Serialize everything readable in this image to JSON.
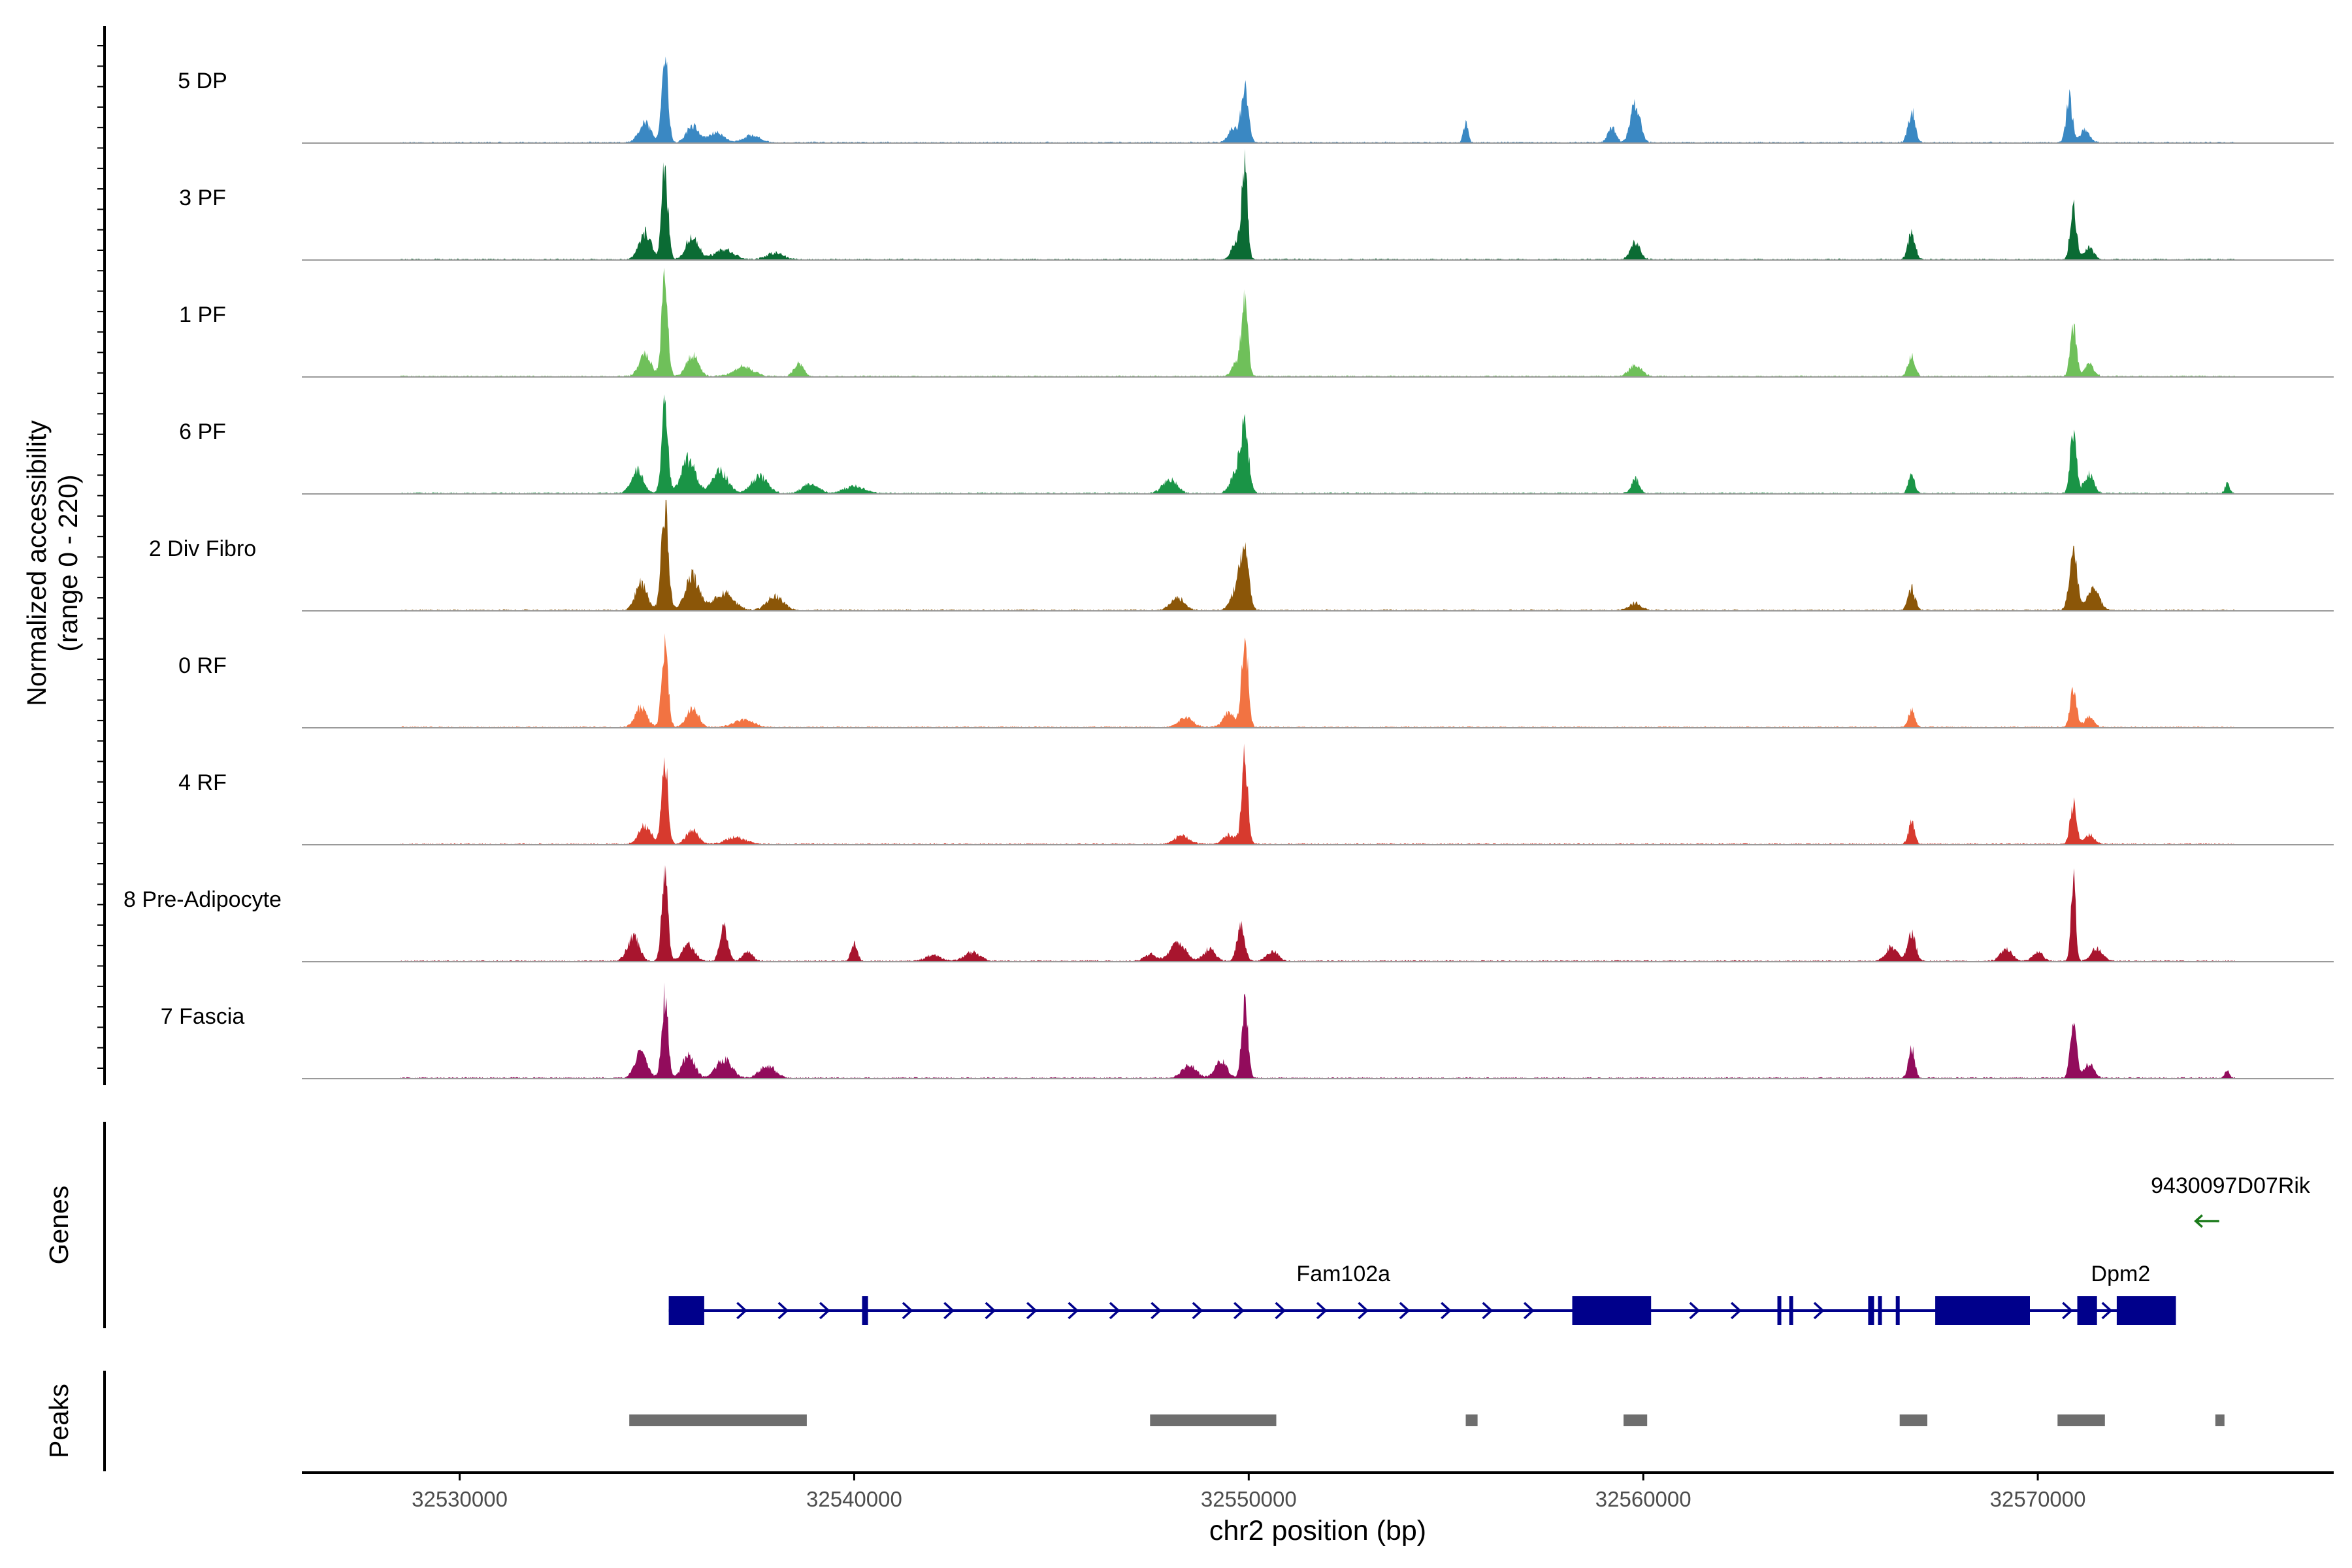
{
  "chart_data": {
    "type": "coverage-track",
    "title": "",
    "region": {
      "chrom": "chr2",
      "start": 32526000,
      "end": 32577500
    },
    "xlabel": "chr2 position (bp)",
    "x_ticks": [
      32530000,
      32540000,
      32550000,
      32560000,
      32570000
    ],
    "x_tick_labels": [
      "32530000",
      "32540000",
      "32550000",
      "32560000",
      "32570000"
    ],
    "ylabel_line1": "Normalized accessibility",
    "ylabel_line2": "(range 0 - 220)",
    "y_range": [
      0,
      220
    ],
    "track_label_genes": "Genes",
    "track_label_peaks": "Peaks",
    "tracks": [
      {
        "name": "5 DP",
        "color": "#3a88c3",
        "data_end": 32575000,
        "peaks": [
          [
            32535200,
            185,
            80
          ],
          [
            32534700,
            40,
            150
          ],
          [
            32535900,
            35,
            150
          ],
          [
            32536500,
            20,
            200
          ],
          [
            32537400,
            15,
            200
          ],
          [
            32549600,
            30,
            120
          ],
          [
            32549900,
            110,
            90
          ],
          [
            32555500,
            40,
            60
          ],
          [
            32559200,
            30,
            100
          ],
          [
            32559800,
            80,
            120
          ],
          [
            32566800,
            65,
            90
          ],
          [
            32570800,
            90,
            80
          ],
          [
            32571200,
            25,
            120
          ]
        ]
      },
      {
        "name": "3 PF",
        "color": "#0b6b34",
        "data_end": 32575000,
        "peaks": [
          [
            32535200,
            192,
            80
          ],
          [
            32534700,
            55,
            150
          ],
          [
            32535900,
            50,
            150
          ],
          [
            32536700,
            20,
            250
          ],
          [
            32538000,
            14,
            200
          ],
          [
            32549700,
            40,
            120
          ],
          [
            32549900,
            205,
            70
          ],
          [
            32559800,
            35,
            120
          ],
          [
            32566800,
            55,
            90
          ],
          [
            32570900,
            105,
            80
          ],
          [
            32571300,
            25,
            120
          ]
        ]
      },
      {
        "name": "1 PF",
        "color": "#6fc05a",
        "data_end": 32575000,
        "peaks": [
          [
            32535200,
            195,
            80
          ],
          [
            32534700,
            45,
            150
          ],
          [
            32535900,
            45,
            150
          ],
          [
            32537200,
            20,
            250
          ],
          [
            32538600,
            25,
            120
          ],
          [
            32549700,
            30,
            120
          ],
          [
            32549900,
            150,
            80
          ],
          [
            32559800,
            25,
            150
          ],
          [
            32566800,
            40,
            90
          ],
          [
            32570900,
            100,
            80
          ],
          [
            32571300,
            25,
            120
          ]
        ]
      },
      {
        "name": "6 PF",
        "color": "#1a9446",
        "data_end": 32575000,
        "peaks": [
          [
            32535200,
            180,
            80
          ],
          [
            32534500,
            50,
            150
          ],
          [
            32535800,
            70,
            180
          ],
          [
            32536600,
            45,
            200
          ],
          [
            32537600,
            35,
            200
          ],
          [
            32538900,
            20,
            200
          ],
          [
            32540000,
            15,
            250
          ],
          [
            32549700,
            45,
            150
          ],
          [
            32549900,
            120,
            100
          ],
          [
            32548000,
            30,
            180
          ],
          [
            32559800,
            30,
            100
          ],
          [
            32566800,
            40,
            80
          ],
          [
            32570900,
            125,
            80
          ],
          [
            32571300,
            40,
            120
          ],
          [
            32574800,
            20,
            60
          ]
        ]
      },
      {
        "name": "2 Div Fibro",
        "color": "#8b5608",
        "data_end": 32575000,
        "peaks": [
          [
            32535200,
            215,
            90
          ],
          [
            32534600,
            55,
            150
          ],
          [
            32535900,
            70,
            180
          ],
          [
            32536700,
            35,
            250
          ],
          [
            32538000,
            30,
            200
          ],
          [
            32549700,
            45,
            150
          ],
          [
            32549900,
            125,
            100
          ],
          [
            32548200,
            25,
            180
          ],
          [
            32559800,
            15,
            150
          ],
          [
            32566800,
            45,
            90
          ],
          [
            32570900,
            115,
            100
          ],
          [
            32571400,
            50,
            150
          ]
        ]
      },
      {
        "name": "0 RF",
        "color": "#f27342",
        "data_end": 32575000,
        "peaks": [
          [
            32535200,
            185,
            80
          ],
          [
            32534600,
            40,
            150
          ],
          [
            32535900,
            40,
            150
          ],
          [
            32537200,
            15,
            250
          ],
          [
            32548400,
            20,
            180
          ],
          [
            32549900,
            200,
            80
          ],
          [
            32549500,
            30,
            150
          ],
          [
            32566800,
            35,
            80
          ],
          [
            32570900,
            85,
            80
          ],
          [
            32571300,
            20,
            120
          ]
        ]
      },
      {
        "name": "4 RF",
        "color": "#d73a2e",
        "data_end": 32575000,
        "peaks": [
          [
            32535200,
            175,
            80
          ],
          [
            32534700,
            40,
            150
          ],
          [
            32535900,
            30,
            150
          ],
          [
            32537000,
            14,
            250
          ],
          [
            32548300,
            18,
            180
          ],
          [
            32549900,
            175,
            80
          ],
          [
            32549500,
            20,
            150
          ],
          [
            32566800,
            45,
            80
          ],
          [
            32570900,
            85,
            80
          ],
          [
            32571300,
            20,
            120
          ]
        ]
      },
      {
        "name": "8 Pre-Adipocyte",
        "color": "#a8152e",
        "data_end": 32575000,
        "peaks": [
          [
            32535200,
            170,
            80
          ],
          [
            32534400,
            50,
            150
          ],
          [
            32535800,
            35,
            150
          ],
          [
            32536700,
            70,
            100
          ],
          [
            32537300,
            20,
            120
          ],
          [
            32540000,
            35,
            80
          ],
          [
            32542000,
            12,
            200
          ],
          [
            32543000,
            18,
            200
          ],
          [
            32547500,
            15,
            150
          ],
          [
            32548200,
            35,
            200
          ],
          [
            32549000,
            25,
            150
          ],
          [
            32549800,
            70,
            100
          ],
          [
            32550600,
            20,
            150
          ],
          [
            32566800,
            60,
            100
          ],
          [
            32566300,
            30,
            150
          ],
          [
            32569200,
            25,
            150
          ],
          [
            32570000,
            20,
            120
          ],
          [
            32570900,
            170,
            60
          ],
          [
            32571500,
            25,
            150
          ]
        ]
      },
      {
        "name": "7 Fascia",
        "color": "#920c5c",
        "data_end": 32575000,
        "peaks": [
          [
            32535200,
            170,
            80
          ],
          [
            32534600,
            55,
            150
          ],
          [
            32535800,
            50,
            150
          ],
          [
            32536700,
            40,
            200
          ],
          [
            32537800,
            25,
            200
          ],
          [
            32548500,
            25,
            180
          ],
          [
            32549900,
            155,
            80
          ],
          [
            32549300,
            35,
            150
          ],
          [
            32566800,
            60,
            80
          ],
          [
            32570900,
            115,
            80
          ],
          [
            32571300,
            30,
            120
          ],
          [
            32574800,
            15,
            60
          ]
        ]
      }
    ],
    "genes": [
      {
        "name": "Fam102a",
        "strand": "+",
        "start": 32535300,
        "end": 32573500,
        "exons": [
          [
            32535300,
            32536200
          ],
          [
            32540200,
            32540350
          ],
          [
            32558200,
            32558300
          ],
          [
            32558300,
            32560200
          ],
          [
            32563400,
            32563500
          ],
          [
            32563700,
            32563800
          ],
          [
            32565700,
            32565850
          ],
          [
            32565950,
            32566050
          ],
          [
            32566400,
            32566500
          ],
          [
            32567400,
            32569800
          ]
        ]
      },
      {
        "name": "Dpm2",
        "strand": "+",
        "start": 32571000,
        "end": 32573500,
        "exons": [
          [
            32571000,
            32571500
          ],
          [
            32572000,
            32573500
          ]
        ]
      },
      {
        "name": "9430097D07Rik",
        "strand": "-",
        "start": 32574000,
        "end": 32574600,
        "exons": []
      }
    ],
    "peaks_track": [
      [
        32534300,
        32538800
      ],
      [
        32547500,
        32550700
      ],
      [
        32555500,
        32555800
      ],
      [
        32559500,
        32560100
      ],
      [
        32566500,
        32567200
      ],
      [
        32570500,
        32571700
      ],
      [
        32574500,
        32574700
      ]
    ],
    "colors": {
      "gene": "#00008b",
      "arrow_gene": "#1a7a1a",
      "peak_bar": "#6e6e6e",
      "axis": "#000000",
      "baseline": "#9a9a9a"
    }
  }
}
